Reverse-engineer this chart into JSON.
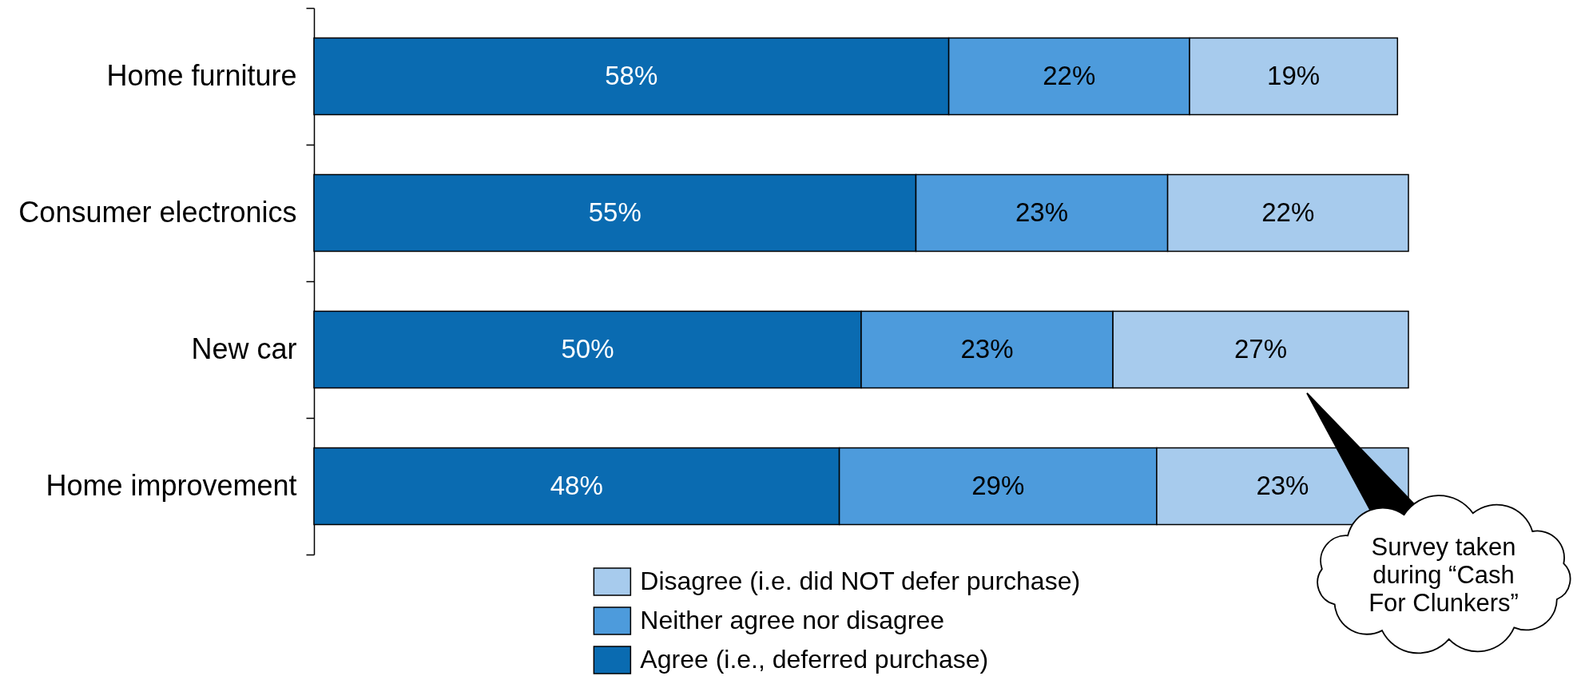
{
  "chart_data": {
    "type": "bar",
    "orientation": "horizontal",
    "stacked": true,
    "categories": [
      "Home furniture",
      "Consumer electronics",
      "New car",
      "Home improvement"
    ],
    "series": [
      {
        "name": "Agree (i.e., deferred purchase)",
        "color": "#0a6bb1",
        "values": [
          58,
          55,
          50,
          48
        ],
        "value_labels": [
          "58%",
          "55%",
          "50%",
          "48%"
        ]
      },
      {
        "name": "Neither agree nor disagree",
        "color": "#4d9bdc",
        "values": [
          22,
          23,
          23,
          29
        ],
        "value_labels": [
          "22%",
          "23%",
          "23%",
          "29%"
        ]
      },
      {
        "name": "Disagree (i.e. did NOT defer purchase)",
        "color": "#a7cbed",
        "values": [
          19,
          22,
          27,
          23
        ],
        "value_labels": [
          "19%",
          "22%",
          "27%",
          "23%"
        ]
      }
    ],
    "xlim": [
      0,
      100
    ],
    "tick_labels": "y",
    "legend": "bottom",
    "annotations": [
      "Survey taken during “Cash For Clunkers”"
    ]
  }
}
